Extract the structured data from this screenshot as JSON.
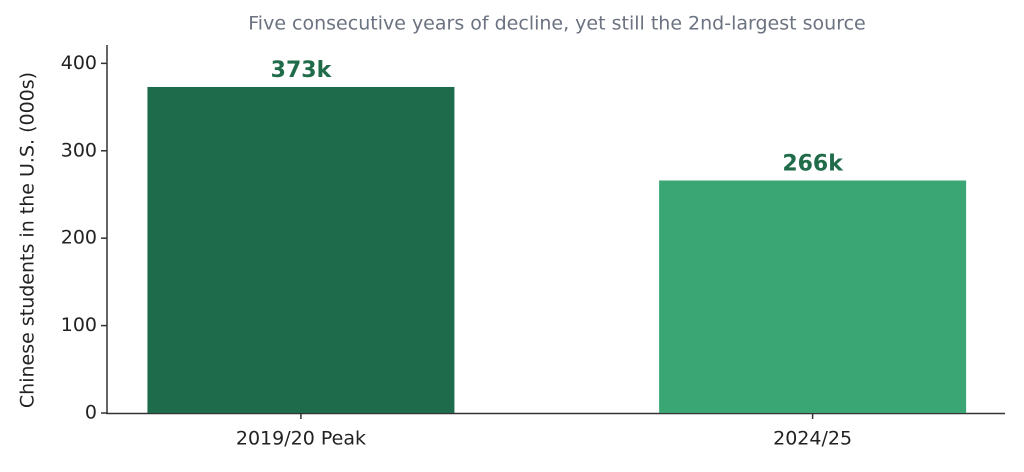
{
  "chart_data": {
    "type": "bar",
    "title": "Five consecutive years of decline, yet still the 2nd-largest source",
    "y_label": "Chinese students in the U.S. (000s)",
    "categories": [
      "2019/20 Peak",
      "2024/25"
    ],
    "values": [
      373,
      266
    ],
    "value_labels": [
      "373k",
      "266k"
    ],
    "colors": [
      "#1d6b4b",
      "#3aa673"
    ],
    "value_label_color": "#1f6b4a",
    "ylim": [
      0,
      421
    ],
    "yticks": [
      0,
      100,
      200,
      300,
      400
    ],
    "grid": false
  }
}
